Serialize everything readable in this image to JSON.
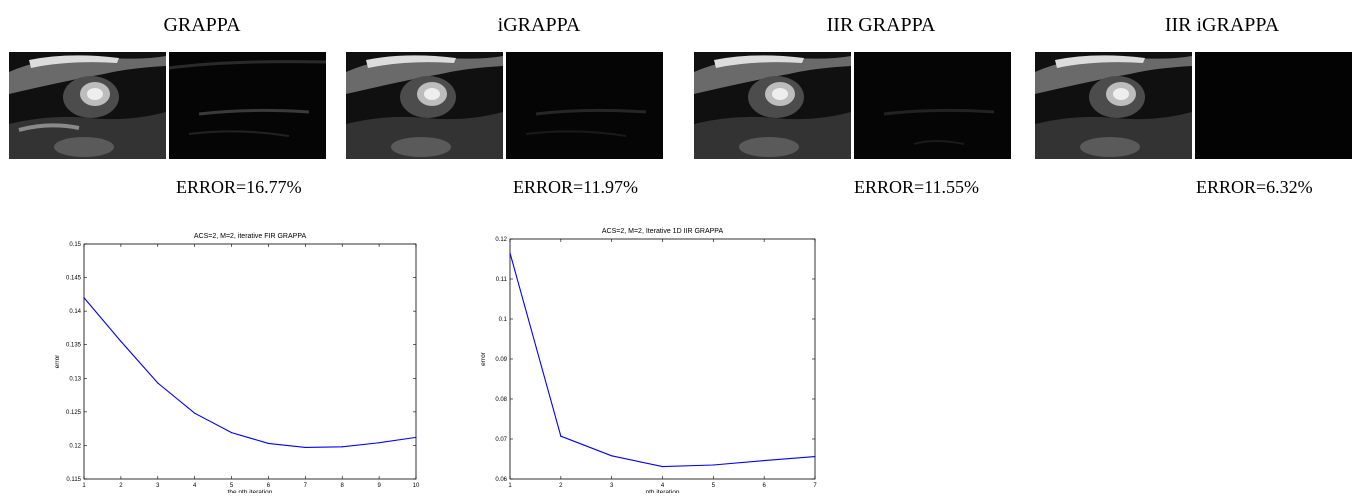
{
  "panels": [
    {
      "title": "GRAPPA",
      "error": "ERROR=16.77%"
    },
    {
      "title": "iGRAPPA",
      "error": "ERROR=11.97%"
    },
    {
      "title": "IIR GRAPPA",
      "error": "ERROR=11.55%"
    },
    {
      "title": "IIR iGRAPPA",
      "error": "ERROR=6.32%"
    }
  ],
  "chart_data": [
    {
      "type": "line",
      "title": "ACS=2, M=2, iterative FIR GRAPPA",
      "xlabel": "the nth iteration",
      "ylabel": "error",
      "x": [
        1,
        2,
        3,
        4,
        5,
        6,
        7,
        8,
        9,
        10
      ],
      "y": [
        0.142,
        0.1355,
        0.1293,
        0.1248,
        0.1219,
        0.1203,
        0.1197,
        0.1198,
        0.1204,
        0.1212
      ],
      "xlim": [
        1,
        10
      ],
      "ylim": [
        0.115,
        0.15
      ],
      "xticks": [
        "1",
        "2",
        "3",
        "4",
        "5",
        "6",
        "7",
        "8",
        "9",
        "10"
      ],
      "yticks": [
        "0.115",
        "0.12",
        "0.125",
        "0.13",
        "0.135",
        "0.14",
        "0.145",
        "0.15"
      ],
      "line_color": "#0000ff",
      "grid": false
    },
    {
      "type": "line",
      "title": "ACS=2, M=2, Iterative 1D IIR GRAPPA",
      "xlabel": "nth iteration",
      "ylabel": "error",
      "x": [
        1,
        2,
        3,
        4,
        5,
        6,
        7
      ],
      "y": [
        0.1165,
        0.0707,
        0.0658,
        0.0631,
        0.0635,
        0.0646,
        0.0656
      ],
      "xlim": [
        1,
        7
      ],
      "ylim": [
        0.06,
        0.12
      ],
      "xticks": [
        "1",
        "2",
        "3",
        "4",
        "5",
        "6",
        "7"
      ],
      "yticks": [
        "0.06",
        "0.07",
        "0.08",
        "0.09",
        "0.1",
        "0.11",
        "0.12"
      ],
      "line_color": "#0000ff",
      "grid": false
    }
  ]
}
